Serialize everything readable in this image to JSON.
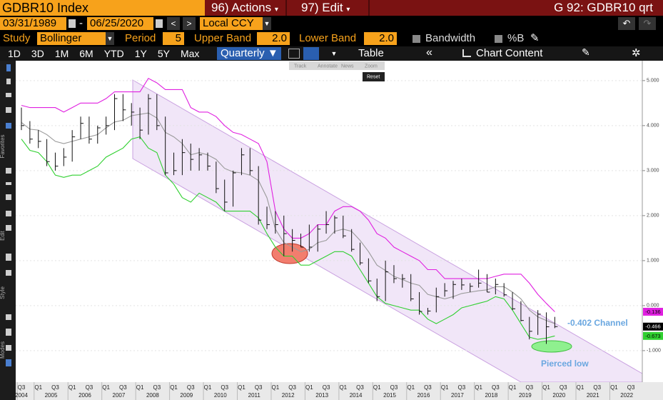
{
  "ui": {
    "security": "GDBR10 Index",
    "actions": "96) Actions",
    "edit": "97) Edit",
    "page": "G 92: GDBR10 qrt",
    "start_date": "03/31/1989",
    "end_date": "06/25/2020",
    "currency": "Local CCY",
    "study_label": "Study",
    "study": "Bollinger",
    "period_label": "Period",
    "period": "5",
    "upper_label": "Upper Band",
    "upper": "2.0",
    "lower_label": "Lower Band",
    "lower": "2.0",
    "bandwidth": "Bandwidth",
    "pctb": "%B",
    "ranges": [
      "1D",
      "3D",
      "1M",
      "6M",
      "YTD",
      "1Y",
      "5Y",
      "Max"
    ],
    "frequency": "Quarterly",
    "table": "Table",
    "chart_content": "Chart Content",
    "side_labels": [
      "Favorites",
      "Edit",
      "Style",
      "Modes"
    ],
    "mini_tools": [
      "Track",
      "Annotate",
      "News",
      "Zoom"
    ],
    "reset": "Reset"
  },
  "chart_data": {
    "type": "ohlc",
    "categories": [
      "Q3",
      null,
      "Q1",
      null,
      "Q3",
      null,
      "Q1",
      null,
      "Q3",
      null,
      "Q1",
      null,
      "Q3",
      null,
      "Q1",
      null,
      "Q3",
      null,
      "Q1",
      null,
      "Q3",
      null,
      "Q1",
      null,
      "Q3",
      null,
      "Q1",
      null,
      "Q3",
      null,
      "Q1",
      null,
      "Q3",
      null,
      "Q1",
      null,
      "Q3",
      null,
      "Q1",
      null,
      "Q3",
      null,
      "Q1",
      null,
      "Q3",
      null,
      "Q1",
      null,
      "Q3",
      null,
      "Q1",
      null,
      "Q3",
      null,
      "Q1",
      null,
      "Q3",
      null,
      "Q1",
      null,
      "Q3",
      null,
      "Q1",
      null,
      "Q3",
      null,
      "Q1",
      null,
      "Q3",
      null,
      "Q1",
      null,
      "Q3",
      null
    ],
    "years": [
      "2004",
      "2005",
      "2006",
      "2007",
      "2008",
      "2009",
      "2010",
      "2011",
      "2012",
      "2013",
      "2014",
      "2015",
      "2016",
      "2017",
      "2018",
      "2019",
      "2020",
      "2021",
      "2022"
    ],
    "bar_color": "#111111",
    "high": [
      4.4,
      4.1,
      3.9,
      3.7,
      3.4,
      3.5,
      3.9,
      4.2,
      4.2,
      4.0,
      4.2,
      4.7,
      4.7,
      4.5,
      4.4,
      4.7,
      4.7,
      4.2,
      3.4,
      3.7,
      3.6,
      3.5,
      3.4,
      3.2,
      2.8,
      3.0,
      3.5,
      3.5,
      3.1,
      2.2,
      2.1,
      2.0,
      1.7,
      1.6,
      1.8,
      1.8,
      2.1,
      2.0,
      2.0,
      1.7,
      1.4,
      1.05,
      0.6,
      1.0,
      0.9,
      0.7,
      0.7,
      0.3,
      -0.05,
      0.4,
      0.5,
      0.55,
      0.6,
      0.5,
      0.8,
      0.7,
      0.6,
      0.5,
      0.3,
      0.1,
      -0.25,
      -0.1,
      -0.15,
      -0.25,
      null,
      null,
      null,
      null,
      null,
      null,
      null,
      null,
      null,
      null
    ],
    "low": [
      3.9,
      3.6,
      3.5,
      3.1,
      3.0,
      3.1,
      3.2,
      3.7,
      3.6,
      3.6,
      3.8,
      3.9,
      4.1,
      4.0,
      3.7,
      3.8,
      3.9,
      2.9,
      2.9,
      2.9,
      3.0,
      3.0,
      3.0,
      2.5,
      2.1,
      2.2,
      2.9,
      2.9,
      1.8,
      1.7,
      1.6,
      1.1,
      1.2,
      1.3,
      1.2,
      1.2,
      1.6,
      1.6,
      1.5,
      1.2,
      0.9,
      0.5,
      0.1,
      0.1,
      0.5,
      0.4,
      0.1,
      -0.2,
      -0.2,
      -0.15,
      0.2,
      0.15,
      0.35,
      0.3,
      0.4,
      0.3,
      0.25,
      0.2,
      -0.1,
      -0.35,
      -0.75,
      -0.65,
      -0.85,
      -0.5,
      null,
      null,
      null,
      null,
      null,
      null,
      null,
      null,
      null,
      null
    ],
    "close": [
      4.0,
      3.7,
      3.65,
      3.2,
      3.1,
      3.3,
      3.75,
      4.05,
      3.7,
      3.95,
      4.0,
      4.6,
      4.35,
      4.3,
      3.9,
      4.6,
      4.0,
      2.95,
      3.0,
      3.4,
      3.25,
      3.35,
      3.1,
      2.6,
      2.3,
      2.95,
      3.35,
      3.0,
      1.9,
      1.8,
      1.8,
      1.6,
      1.45,
      1.3,
      1.3,
      1.7,
      1.8,
      1.95,
      1.55,
      1.25,
      0.95,
      0.55,
      0.2,
      0.75,
      0.6,
      0.6,
      0.15,
      -0.13,
      -0.12,
      0.2,
      0.33,
      0.47,
      0.46,
      0.43,
      0.5,
      0.3,
      0.47,
      0.24,
      -0.07,
      -0.33,
      -0.57,
      -0.19,
      -0.47,
      -0.466,
      null,
      null,
      null,
      null,
      null,
      null,
      null,
      null,
      null,
      null
    ],
    "upper_band": {
      "color": "#e020e0",
      "values": [
        4.45,
        4.4,
        4.4,
        4.4,
        4.4,
        4.3,
        4.4,
        4.5,
        4.5,
        4.5,
        4.6,
        4.75,
        4.75,
        4.75,
        4.75,
        5.05,
        4.95,
        4.8,
        4.8,
        4.8,
        4.4,
        4.3,
        4.3,
        4.2,
        4.0,
        3.85,
        3.8,
        3.7,
        3.6,
        3.2,
        2.1,
        1.7,
        1.5,
        1.5,
        1.6,
        1.8,
        1.8,
        2.1,
        2.2,
        2.2,
        2.1,
        1.9,
        1.6,
        1.5,
        1.3,
        1.2,
        1.1,
        1.0,
        0.8,
        0.8,
        0.6,
        0.6,
        0.6,
        0.6,
        0.6,
        0.6,
        0.65,
        0.7,
        0.7,
        0.7,
        0.5,
        0.25,
        0.05,
        -0.136,
        null,
        null,
        null,
        null,
        null,
        null,
        null,
        null,
        null,
        null
      ]
    },
    "middle_band": {
      "color": "#9a9a9a",
      "values": [
        4.07,
        3.92,
        3.9,
        3.8,
        3.65,
        3.6,
        3.65,
        3.7,
        3.75,
        3.8,
        3.95,
        4.08,
        4.12,
        4.22,
        4.25,
        4.28,
        4.17,
        3.85,
        3.75,
        3.6,
        3.35,
        3.4,
        3.35,
        3.25,
        3.05,
        2.97,
        2.95,
        2.9,
        2.78,
        2.4,
        1.7,
        1.4,
        1.3,
        1.2,
        1.25,
        1.4,
        1.45,
        1.65,
        1.7,
        1.65,
        1.45,
        1.2,
        0.9,
        0.78,
        0.65,
        0.58,
        0.5,
        0.45,
        0.25,
        0.2,
        0.15,
        0.2,
        0.27,
        0.3,
        0.33,
        0.35,
        0.42,
        0.42,
        0.3,
        0.15,
        -0.1,
        -0.25,
        -0.33,
        -0.4,
        null,
        null,
        null,
        null,
        null,
        null,
        null,
        null,
        null,
        null
      ]
    },
    "lower_band": {
      "color": "#30d030",
      "values": [
        3.7,
        3.45,
        3.4,
        3.2,
        2.9,
        2.85,
        2.9,
        2.9,
        3.0,
        3.1,
        3.3,
        3.4,
        3.5,
        3.7,
        3.75,
        3.5,
        3.4,
        2.9,
        2.7,
        2.4,
        2.3,
        2.5,
        2.4,
        2.3,
        2.1,
        2.1,
        2.1,
        2.1,
        1.95,
        1.6,
        1.3,
        1.1,
        1.1,
        0.9,
        0.9,
        1.0,
        1.1,
        1.2,
        1.2,
        1.1,
        0.8,
        0.5,
        0.2,
        0.05,
        0.0,
        -0.05,
        -0.1,
        -0.1,
        -0.3,
        -0.4,
        -0.3,
        -0.2,
        -0.05,
        0.0,
        0.05,
        0.1,
        0.2,
        0.15,
        -0.1,
        -0.4,
        -0.7,
        -0.75,
        -0.72,
        -0.673,
        null,
        null,
        null,
        null,
        null,
        null,
        null,
        null,
        null,
        null
      ]
    },
    "ylim": [
      -1.7,
      5.41
    ],
    "yticks": [
      {
        "value": -1,
        "label": "-1.000"
      },
      {
        "value": 0,
        "label": "0.000"
      },
      {
        "value": 1,
        "label": "1.000"
      },
      {
        "value": 2,
        "label": "2.000"
      },
      {
        "value": 3,
        "label": "3.000"
      },
      {
        "value": 4,
        "label": "4.000"
      },
      {
        "value": 5,
        "label": "5.000"
      }
    ],
    "grid": true,
    "annotations": [
      "-0.402 Channel",
      "Pierced low"
    ]
  }
}
